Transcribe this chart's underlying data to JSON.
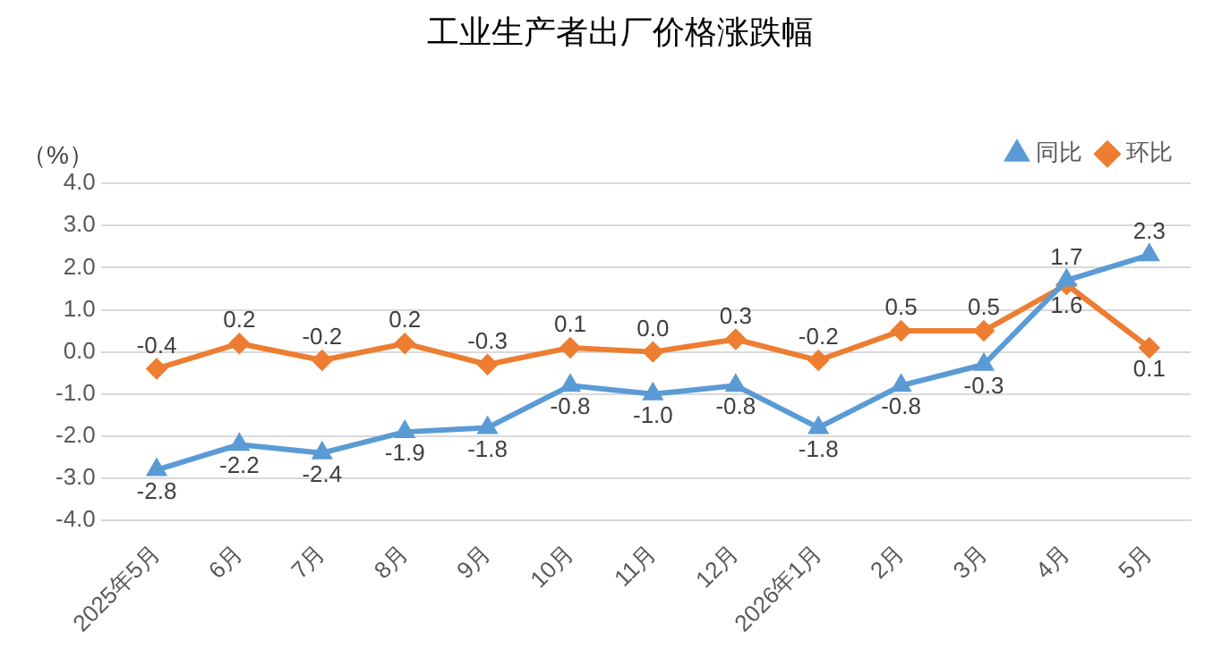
{
  "chart_data": {
    "type": "line",
    "title": "工业生产者出厂价格涨跌幅",
    "ylabel": "（%）",
    "categories": [
      "2025年5月",
      "6月",
      "7月",
      "8月",
      "9月",
      "10月",
      "11月",
      "12月",
      "2026年1月",
      "2月",
      "3月",
      "4月",
      "5月"
    ],
    "series": [
      {
        "name": "同比",
        "color": "#5b9bd5",
        "marker": "triangle",
        "values": [
          -2.8,
          -2.2,
          -2.4,
          -1.9,
          -1.8,
          -0.8,
          -1.0,
          -0.8,
          -1.8,
          -0.8,
          -0.3,
          1.7,
          2.3
        ],
        "value_labels": [
          "-2.8",
          "-2.2",
          "-2.4",
          "-1.9",
          "-1.8",
          "-0.8",
          "-1.0",
          "-0.8",
          "-1.8",
          "-0.8",
          "-0.3",
          "1.7",
          "2.3"
        ]
      },
      {
        "name": "环比",
        "color": "#ed7d31",
        "marker": "diamond",
        "values": [
          -0.4,
          0.2,
          -0.2,
          0.2,
          -0.3,
          0.1,
          0.0,
          0.3,
          -0.2,
          0.5,
          0.5,
          1.6,
          0.1
        ],
        "value_labels": [
          "-0.4",
          "0.2",
          "-0.2",
          "0.2",
          "-0.3",
          "0.1",
          "0.0",
          "0.3",
          "-0.2",
          "0.5",
          "0.5",
          "1.6",
          "0.1"
        ]
      }
    ],
    "ylim": [
      -4,
      4
    ],
    "yticks": [
      {
        "value": -4,
        "label": "-4.0"
      },
      {
        "value": -3,
        "label": "-3.0"
      },
      {
        "value": -2,
        "label": "-2.0"
      },
      {
        "value": -1,
        "label": "-1.0"
      },
      {
        "value": 0,
        "label": "0.0"
      },
      {
        "value": 1,
        "label": "1.0"
      },
      {
        "value": 2,
        "label": "2.0"
      },
      {
        "value": 3,
        "label": "3.0"
      },
      {
        "value": 4,
        "label": "4.0"
      }
    ],
    "grid": "y",
    "legend": "top right",
    "line_style": "solid"
  }
}
